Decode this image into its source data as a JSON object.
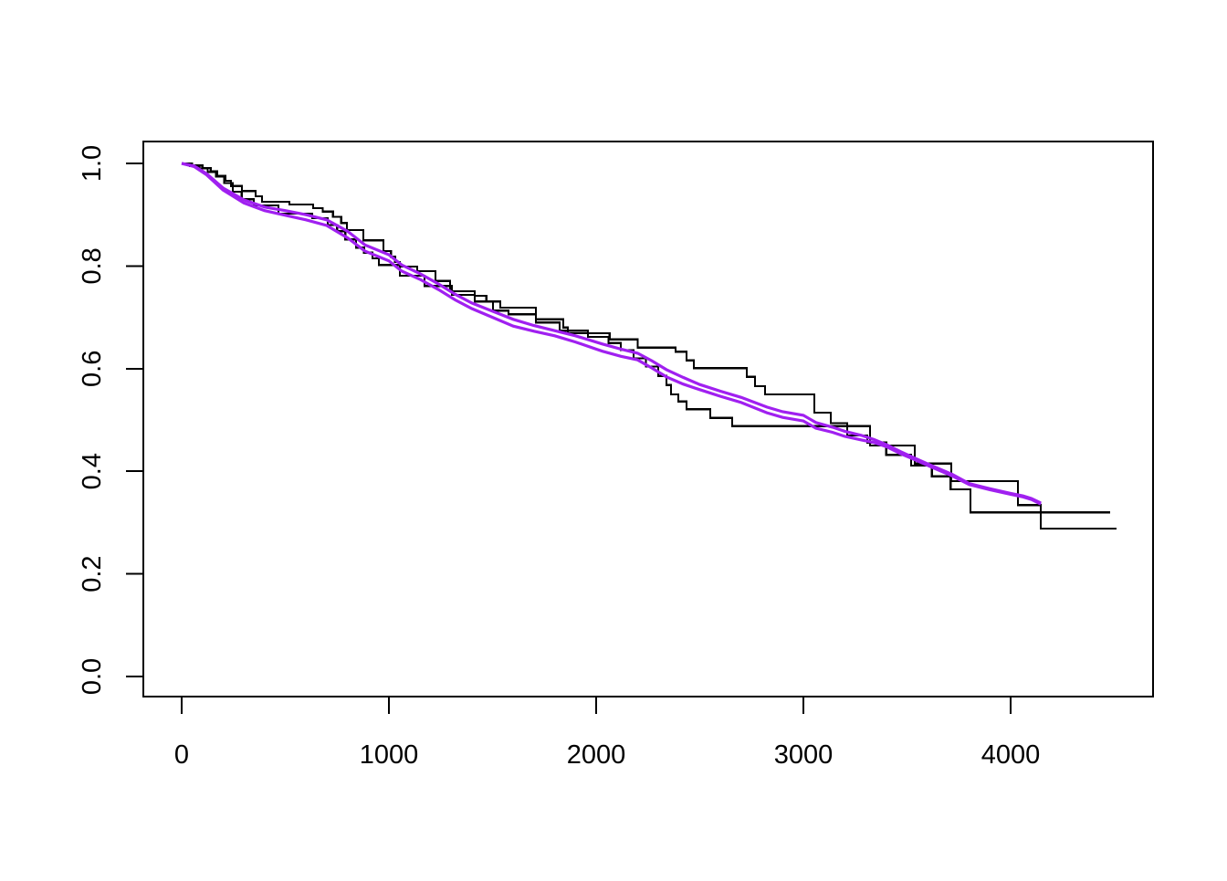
{
  "figure": {
    "background": "#ffffff",
    "frame_color": "#000000"
  },
  "chart_data": {
    "type": "line",
    "description": "Survival probability curves: two black Kaplan-Meier step curves and two purple fitted survival curves, no title, no legend, grid off",
    "xlabel": "",
    "ylabel": "",
    "xlim": [
      -185,
      4690
    ],
    "ylim": [
      -0.039,
      1.043
    ],
    "x_ticks": [
      0,
      1000,
      2000,
      3000,
      4000
    ],
    "y_ticks": [
      "0.0",
      "0.2",
      "0.4",
      "0.6",
      "0.8",
      "1.0"
    ],
    "grid": false,
    "legend": "none",
    "colors": {
      "km_black": "#000000",
      "fit_purple": "#A020F0"
    },
    "series": [
      {
        "name": "km-step-curve-1",
        "color": "#000000",
        "style": "step",
        "line_width": 2.2,
        "points": [
          [
            0,
            1.0
          ],
          [
            40,
            0.995
          ],
          [
            85,
            0.99
          ],
          [
            125,
            0.983
          ],
          [
            165,
            0.974
          ],
          [
            205,
            0.962
          ],
          [
            247,
            0.945
          ],
          [
            290,
            0.93
          ],
          [
            348,
            0.918
          ],
          [
            467,
            0.902
          ],
          [
            630,
            0.893
          ],
          [
            705,
            0.88
          ],
          [
            750,
            0.868
          ],
          [
            790,
            0.852
          ],
          [
            841,
            0.836
          ],
          [
            880,
            0.826
          ],
          [
            921,
            0.815
          ],
          [
            952,
            0.802
          ],
          [
            1053,
            0.781
          ],
          [
            1172,
            0.761
          ],
          [
            1304,
            0.744
          ],
          [
            1414,
            0.731
          ],
          [
            1502,
            0.713
          ],
          [
            1577,
            0.706
          ],
          [
            1709,
            0.69
          ],
          [
            1824,
            0.674
          ],
          [
            1960,
            0.662
          ],
          [
            2060,
            0.65
          ],
          [
            2119,
            0.636
          ],
          [
            2180,
            0.62
          ],
          [
            2240,
            0.604
          ],
          [
            2300,
            0.586
          ],
          [
            2339,
            0.568
          ],
          [
            2361,
            0.55
          ],
          [
            2397,
            0.536
          ],
          [
            2436,
            0.521
          ],
          [
            2551,
            0.504
          ],
          [
            2656,
            0.488
          ],
          [
            3322,
            0.45
          ],
          [
            3538,
            0.415
          ],
          [
            3714,
            0.381
          ],
          [
            4035,
            0.334
          ],
          [
            4146,
            0.288
          ],
          [
            4510,
            0.288
          ]
        ]
      },
      {
        "name": "km-step-curve-2",
        "color": "#000000",
        "style": "step",
        "line_width": 2.2,
        "points": [
          [
            0,
            1.0
          ],
          [
            50,
            0.996
          ],
          [
            100,
            0.991
          ],
          [
            140,
            0.985
          ],
          [
            172,
            0.976
          ],
          [
            210,
            0.966
          ],
          [
            238,
            0.956
          ],
          [
            291,
            0.946
          ],
          [
            357,
            0.936
          ],
          [
            388,
            0.925
          ],
          [
            520,
            0.92
          ],
          [
            634,
            0.913
          ],
          [
            680,
            0.906
          ],
          [
            730,
            0.896
          ],
          [
            770,
            0.884
          ],
          [
            797,
            0.87
          ],
          [
            877,
            0.85
          ],
          [
            974,
            0.829
          ],
          [
            1010,
            0.818
          ],
          [
            1030,
            0.808
          ],
          [
            1053,
            0.799
          ],
          [
            1136,
            0.79
          ],
          [
            1225,
            0.771
          ],
          [
            1295,
            0.751
          ],
          [
            1414,
            0.742
          ],
          [
            1470,
            0.731
          ],
          [
            1537,
            0.719
          ],
          [
            1709,
            0.696
          ],
          [
            1841,
            0.68
          ],
          [
            1863,
            0.669
          ],
          [
            2065,
            0.657
          ],
          [
            2200,
            0.641
          ],
          [
            2383,
            0.633
          ],
          [
            2436,
            0.616
          ],
          [
            2471,
            0.601
          ],
          [
            2727,
            0.584
          ],
          [
            2767,
            0.566
          ],
          [
            2815,
            0.55
          ],
          [
            3053,
            0.514
          ],
          [
            3132,
            0.494
          ],
          [
            3212,
            0.47
          ],
          [
            3308,
            0.456
          ],
          [
            3400,
            0.432
          ],
          [
            3520,
            0.411
          ],
          [
            3620,
            0.39
          ],
          [
            3710,
            0.365
          ],
          [
            3806,
            0.32
          ],
          [
            4480,
            0.32
          ]
        ]
      },
      {
        "name": "fitted-curve-1",
        "color": "#A020F0",
        "style": "line",
        "line_width": 3.2,
        "points": [
          [
            0,
            1.0
          ],
          [
            60,
            0.995
          ],
          [
            120,
            0.98
          ],
          [
            200,
            0.952
          ],
          [
            300,
            0.929
          ],
          [
            400,
            0.915
          ],
          [
            500,
            0.908
          ],
          [
            600,
            0.9
          ],
          [
            700,
            0.89
          ],
          [
            800,
            0.868
          ],
          [
            885,
            0.841
          ],
          [
            1000,
            0.822
          ],
          [
            1062,
            0.802
          ],
          [
            1150,
            0.785
          ],
          [
            1240,
            0.765
          ],
          [
            1320,
            0.745
          ],
          [
            1400,
            0.728
          ],
          [
            1500,
            0.712
          ],
          [
            1600,
            0.696
          ],
          [
            1700,
            0.684
          ],
          [
            1800,
            0.674
          ],
          [
            1900,
            0.664
          ],
          [
            2030,
            0.648
          ],
          [
            2120,
            0.638
          ],
          [
            2200,
            0.63
          ],
          [
            2270,
            0.615
          ],
          [
            2339,
            0.598
          ],
          [
            2420,
            0.583
          ],
          [
            2500,
            0.569
          ],
          [
            2600,
            0.556
          ],
          [
            2700,
            0.544
          ],
          [
            2824,
            0.525
          ],
          [
            2900,
            0.516
          ],
          [
            3000,
            0.509
          ],
          [
            3060,
            0.495
          ],
          [
            3140,
            0.486
          ],
          [
            3200,
            0.478
          ],
          [
            3280,
            0.47
          ],
          [
            3340,
            0.462
          ],
          [
            3400,
            0.452
          ],
          [
            3470,
            0.438
          ],
          [
            3540,
            0.425
          ],
          [
            3630,
            0.409
          ],
          [
            3718,
            0.394
          ],
          [
            3800,
            0.376
          ],
          [
            3900,
            0.366
          ],
          [
            4000,
            0.357
          ],
          [
            4060,
            0.352
          ],
          [
            4100,
            0.347
          ],
          [
            4146,
            0.338
          ]
        ]
      },
      {
        "name": "fitted-curve-2",
        "color": "#A020F0",
        "style": "line",
        "line_width": 3.2,
        "points": [
          [
            0,
            1.0
          ],
          [
            60,
            0.994
          ],
          [
            120,
            0.978
          ],
          [
            200,
            0.948
          ],
          [
            300,
            0.923
          ],
          [
            400,
            0.908
          ],
          [
            500,
            0.899
          ],
          [
            600,
            0.89
          ],
          [
            700,
            0.879
          ],
          [
            800,
            0.855
          ],
          [
            885,
            0.829
          ],
          [
            1000,
            0.81
          ],
          [
            1062,
            0.79
          ],
          [
            1150,
            0.774
          ],
          [
            1240,
            0.754
          ],
          [
            1320,
            0.734
          ],
          [
            1400,
            0.717
          ],
          [
            1500,
            0.7
          ],
          [
            1600,
            0.683
          ],
          [
            1700,
            0.673
          ],
          [
            1800,
            0.664
          ],
          [
            1900,
            0.652
          ],
          [
            2030,
            0.634
          ],
          [
            2120,
            0.624
          ],
          [
            2200,
            0.617
          ],
          [
            2270,
            0.601
          ],
          [
            2339,
            0.584
          ],
          [
            2420,
            0.57
          ],
          [
            2500,
            0.559
          ],
          [
            2600,
            0.546
          ],
          [
            2700,
            0.534
          ],
          [
            2824,
            0.514
          ],
          [
            2900,
            0.505
          ],
          [
            3000,
            0.498
          ],
          [
            3060,
            0.484
          ],
          [
            3140,
            0.476
          ],
          [
            3200,
            0.468
          ],
          [
            3280,
            0.461
          ],
          [
            3340,
            0.456
          ],
          [
            3400,
            0.448
          ],
          [
            3470,
            0.434
          ],
          [
            3540,
            0.422
          ],
          [
            3630,
            0.406
          ],
          [
            3718,
            0.391
          ],
          [
            3800,
            0.374
          ],
          [
            3900,
            0.364
          ],
          [
            4000,
            0.355
          ],
          [
            4060,
            0.35
          ],
          [
            4100,
            0.345
          ],
          [
            4146,
            0.336
          ]
        ]
      }
    ]
  }
}
